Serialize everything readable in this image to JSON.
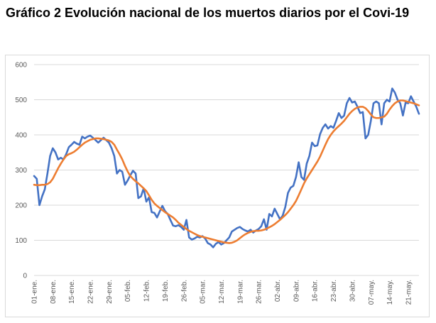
{
  "title": "Gráfico 2 Evolución nacional de los muertos diarios por el Covi-19",
  "chart_data": {
    "type": "line",
    "ylim": [
      0,
      600
    ],
    "yticks": [
      0,
      100,
      200,
      300,
      400,
      500,
      600
    ],
    "x_tick_labels": [
      "01-ene.",
      "08-ene.",
      "15-ene.",
      "22-ene.",
      "29-ene.",
      "05-feb.",
      "12-feb.",
      "19-feb.",
      "26-feb.",
      "05-mar.",
      "12-mar.",
      "19-mar.",
      "26-mar.",
      "02-abr.",
      "09-abr.",
      "16-abr.",
      "23-abr.",
      "30-abr.",
      "07-may.",
      "14-may.",
      "21-may."
    ],
    "x_start": "2021-01-01",
    "x_end": "2021-05-26",
    "grid": true,
    "series": [
      {
        "color": "#4472c4",
        "values": [
          283,
          275,
          200,
          225,
          245,
          290,
          340,
          362,
          350,
          330,
          335,
          330,
          345,
          365,
          372,
          380,
          375,
          372,
          395,
          390,
          395,
          398,
          392,
          385,
          378,
          385,
          392,
          385,
          378,
          362,
          340,
          290,
          300,
          295,
          258,
          270,
          285,
          298,
          290,
          220,
          225,
          248,
          210,
          222,
          180,
          178,
          165,
          182,
          198,
          183,
          175,
          158,
          142,
          140,
          143,
          138,
          130,
          158,
          108,
          102,
          105,
          110,
          108,
          112,
          105,
          92,
          88,
          80,
          90,
          95,
          88,
          92,
          100,
          108,
          125,
          130,
          135,
          138,
          132,
          128,
          125,
          130,
          122,
          128,
          132,
          140,
          160,
          130,
          175,
          168,
          190,
          175,
          160,
          170,
          195,
          235,
          250,
          255,
          280,
          322,
          280,
          272,
          318,
          340,
          378,
          368,
          370,
          402,
          420,
          430,
          418,
          425,
          420,
          440,
          462,
          448,
          455,
          490,
          505,
          492,
          495,
          480,
          462,
          465,
          390,
          400,
          440,
          490,
          495,
          490,
          430,
          490,
          500,
          495,
          532,
          520,
          500,
          490,
          455,
          492,
          490,
          510,
          495,
          480,
          460
        ]
      },
      {
        "color": "#ed7d31",
        "values": [
          258,
          257,
          257,
          258,
          258,
          260,
          265,
          275,
          290,
          305,
          318,
          330,
          340,
          345,
          348,
          352,
          358,
          365,
          372,
          378,
          382,
          386,
          388,
          390,
          390,
          389,
          388,
          386,
          384,
          380,
          372,
          358,
          345,
          330,
          312,
          296,
          283,
          275,
          268,
          262,
          255,
          248,
          240,
          228,
          215,
          205,
          198,
          192,
          186,
          180,
          175,
          170,
          165,
          158,
          150,
          144,
          138,
          132,
          127,
          123,
          119,
          115,
          112,
          110,
          108,
          106,
          104,
          102,
          100,
          98,
          96,
          94,
          93,
          92,
          93,
          96,
          100,
          106,
          112,
          117,
          121,
          124,
          126,
          127,
          127,
          128,
          130,
          133,
          137,
          141,
          146,
          152,
          158,
          165,
          172,
          180,
          190,
          200,
          212,
          228,
          245,
          262,
          276,
          288,
          300,
          312,
          324,
          338,
          355,
          372,
          388,
          400,
          410,
          418,
          425,
          432,
          440,
          450,
          460,
          468,
          474,
          478,
          480,
          480,
          476,
          468,
          458,
          450,
          448,
          448,
          450,
          452,
          460,
          472,
          482,
          490,
          495,
          498,
          498,
          496,
          494,
          492,
          490,
          487,
          484
        ]
      }
    ]
  }
}
